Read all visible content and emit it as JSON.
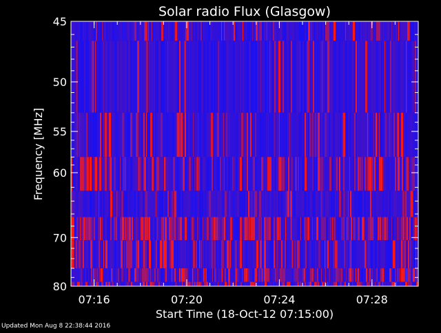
{
  "chart_data": {
    "type": "heatmap",
    "title": "Solar radio Flux (Glasgow)",
    "xlabel": "Start Time (18-Oct-12 07:15:00)",
    "ylabel": "Frequency [MHz]",
    "x_ticks": [
      "07:16",
      "07:20",
      "07:24",
      "07:28"
    ],
    "y_ticks": [
      "45",
      "50",
      "55",
      "60",
      "70",
      "80"
    ],
    "y_axis_scale": "reciprocal",
    "xlim": [
      "07:15",
      "07:30"
    ],
    "ylim": [
      45,
      80
    ],
    "grid": false,
    "colors": {
      "background": "#000000",
      "base": "#1a10f0",
      "bright": "#ff1a10",
      "axis": "#ffffff"
    },
    "frequency_bands": [
      {
        "from": 45,
        "to": 46.5,
        "level": 0.2
      },
      {
        "from": 46.5,
        "to": 53,
        "level": 0.12
      },
      {
        "from": 53,
        "to": 58,
        "level": 0.28
      },
      {
        "from": 58,
        "to": 62.5,
        "level": 0.58
      },
      {
        "from": 62.5,
        "to": 66.5,
        "level": 0.18
      },
      {
        "from": 66.5,
        "to": 70.5,
        "level": 0.68
      },
      {
        "from": 70.5,
        "to": 76,
        "level": 0.4
      },
      {
        "from": 76,
        "to": 79,
        "level": 0.55
      },
      {
        "from": 79,
        "to": 80,
        "level": 0.5
      }
    ],
    "bursts": [
      {
        "time": "07:19.9",
        "from": 46.5,
        "to": 53,
        "level": 0.9
      },
      {
        "time": "07:21.8",
        "from": 76,
        "to": 80,
        "level": 1.0
      },
      {
        "time": "07:22.1",
        "from": 76,
        "to": 80,
        "level": 0.95
      }
    ]
  },
  "footer": {
    "updated": "Updated Mon Aug  8 22:38:44 2016"
  }
}
